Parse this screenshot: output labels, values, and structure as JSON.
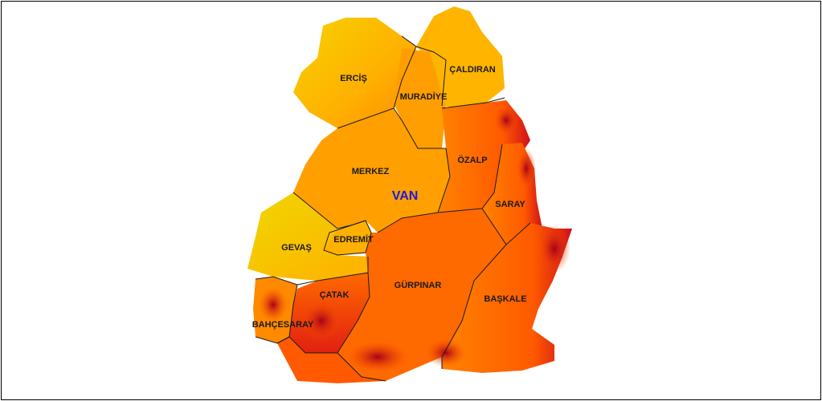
{
  "map": {
    "title": "VAN",
    "colors": {
      "low": "#f5d300",
      "mid": "#ff9a00",
      "high": "#ff6a00",
      "peak": "#c8001a"
    },
    "districts": [
      {
        "name": "ERCİŞ"
      },
      {
        "name": "ÇALDIRAN"
      },
      {
        "name": "MURADİYE"
      },
      {
        "name": "ÖZALP"
      },
      {
        "name": "MERKEZ"
      },
      {
        "name": "SARAY"
      },
      {
        "name": "EDREMİT"
      },
      {
        "name": "GEVAŞ"
      },
      {
        "name": "GÜRPINAR"
      },
      {
        "name": "ÇATAK"
      },
      {
        "name": "BAŞKALE"
      },
      {
        "name": "BAHÇESARAY"
      }
    ]
  }
}
